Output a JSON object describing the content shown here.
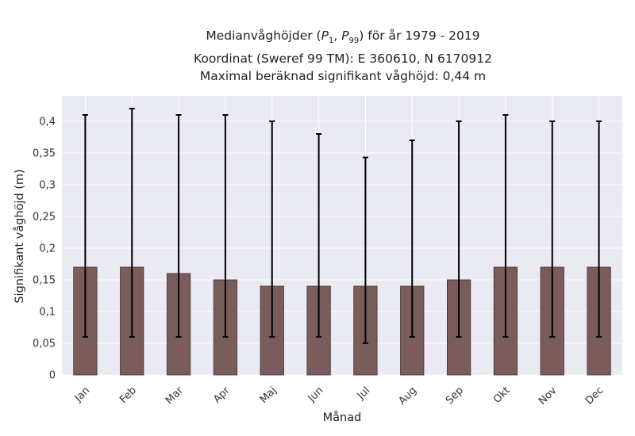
{
  "chart_data": {
    "type": "bar",
    "title": {
      "line1_prefix": "Medianvåghöjder (",
      "p_low_symbol": "P",
      "p_low_sub": "1",
      "separator": ", ",
      "p_high_symbol": "P",
      "p_high_sub": "99",
      "line1_suffix": ") för år 1979 - 2019",
      "line2": "Koordinat (Sweref 99 TM): E 360610, N 6170912",
      "line3": "Maximal beräknad signifikant våghöjd: 0,44 m"
    },
    "xlabel": "Månad",
    "ylabel": "Signifikant våghöjd (m)",
    "ylim": [
      0,
      0.44
    ],
    "yticks": [
      0,
      0.05,
      0.1,
      0.15,
      0.2,
      0.25,
      0.3,
      0.35,
      0.4
    ],
    "ytick_labels": [
      "0",
      "0,05",
      "0,1",
      "0,15",
      "0,2",
      "0,25",
      "0,3",
      "0,35",
      "0,4"
    ],
    "categories": [
      "Jan",
      "Feb",
      "Mar",
      "Apr",
      "Maj",
      "Jun",
      "Jul",
      "Aug",
      "Sep",
      "Okt",
      "Nov",
      "Dec"
    ],
    "values": [
      0.17,
      0.17,
      0.16,
      0.15,
      0.14,
      0.14,
      0.14,
      0.14,
      0.15,
      0.17,
      0.17,
      0.17
    ],
    "p1": [
      0.06,
      0.06,
      0.06,
      0.06,
      0.06,
      0.06,
      0.05,
      0.06,
      0.06,
      0.06,
      0.06,
      0.06
    ],
    "p99": [
      0.41,
      0.42,
      0.41,
      0.41,
      0.4,
      0.38,
      0.343,
      0.37,
      0.4,
      0.41,
      0.4,
      0.4
    ],
    "grid": true,
    "colors": {
      "bar": "#7a5c5c",
      "bar_edge": "#3e3030",
      "error_bar": "#000000",
      "plot_background": "#eaeaf2",
      "grid": "#ffffff"
    }
  }
}
